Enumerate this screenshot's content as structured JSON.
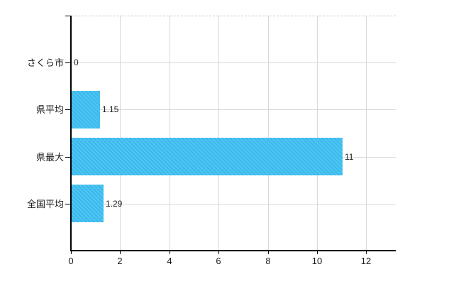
{
  "chart_data": {
    "type": "bar",
    "orientation": "horizontal",
    "title": "",
    "categories": [
      "さくら市",
      "県平均",
      "県最大",
      "全国平均"
    ],
    "values": [
      0,
      1.15,
      11,
      1.29
    ],
    "value_labels": [
      "0",
      "1.15",
      "11",
      "1.29"
    ],
    "x_ticks": [
      0,
      2,
      4,
      6,
      8,
      10,
      12
    ],
    "x_tick_labels": [
      "0",
      "2",
      "4",
      "6",
      "8",
      "10",
      "12"
    ],
    "xlim": [
      0,
      13.2
    ],
    "grid": true,
    "legend_position": "none",
    "xlabel": "",
    "ylabel": "",
    "colors": {
      "bar": "#3cbef1",
      "grid": "#d7d7d7",
      "axis": "#000000",
      "text": "#1a1a1a",
      "top_border": "#c9c9c9",
      "background": "#ffffff"
    }
  }
}
